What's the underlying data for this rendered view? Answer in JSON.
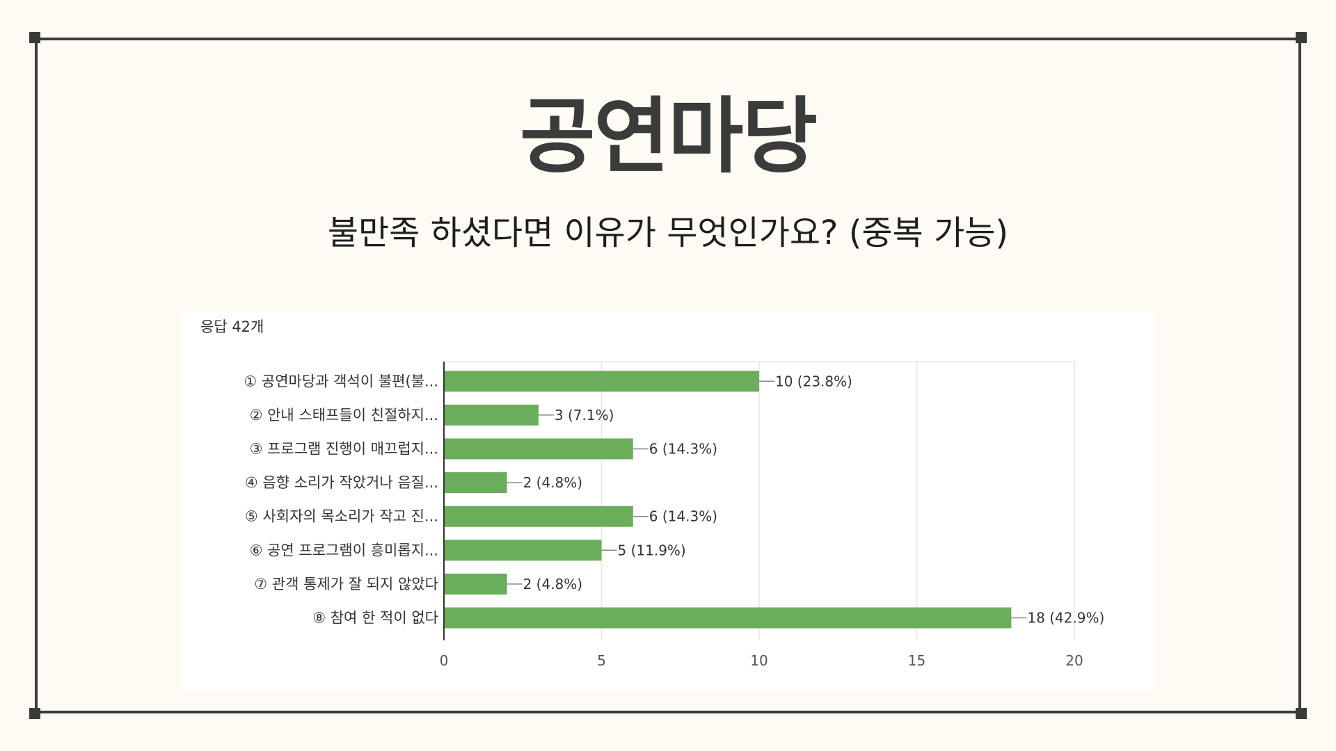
{
  "slide": {
    "title": "공연마당",
    "question": "불만족 하셨다면 이유가 무엇인가요? (중복 가능)"
  },
  "chart_data": {
    "type": "bar",
    "orientation": "horizontal",
    "response_count_label": "응답 42개",
    "categories": [
      "① 공연마당과 객석이 불편(불...",
      "② 안내 스태프들이 친절하지...",
      "③ 프로그램 진행이 매끄럽지...",
      "④ 음향 소리가 작았거나 음질...",
      "⑤ 사회자의 목소리가 작고 진...",
      "⑥ 공연 프로그램이 흥미롭지...",
      "⑦ 관객 통제가 잘 되지 않았다",
      "⑧ 참여 한 적이 없다"
    ],
    "values": [
      10,
      3,
      6,
      2,
      6,
      5,
      2,
      18
    ],
    "value_labels": [
      "10 (23.8%)",
      "3 (7.1%)",
      "6 (14.3%)",
      "2 (4.8%)",
      "6 (14.3%)",
      "5 (11.9%)",
      "2 (4.8%)",
      "18 (42.9%)"
    ],
    "x_ticks": [
      0,
      5,
      10,
      15,
      20
    ],
    "xlim": [
      0,
      20
    ],
    "grid": true,
    "bar_color": "#6aad5a"
  },
  "colors": {
    "background": "#fdfbf4",
    "frame": "#3a3a3a",
    "grid": "#e6e6e6",
    "axis": "#333333"
  }
}
